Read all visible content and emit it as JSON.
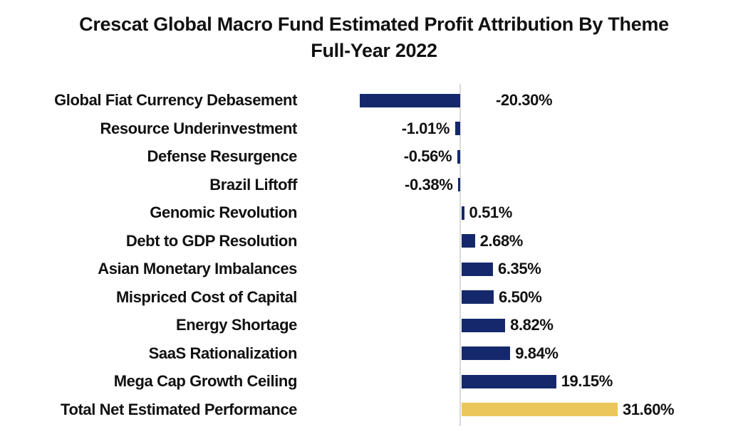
{
  "title": {
    "line1": "Crescat Global Macro Fund Estimated Profit Attribution By Theme",
    "line2": "Full-Year 2022"
  },
  "chart_data": {
    "type": "bar",
    "orientation": "horizontal",
    "title": "Crescat Global Macro Fund Estimated Profit Attribution By Theme Full-Year 2022",
    "xlabel": "",
    "ylabel": "",
    "xlim": [
      -25,
      35
    ],
    "grid": false,
    "legend": "none",
    "zero_axis_line_color": "#d9d9d9",
    "categories": [
      "Global Fiat Currency Debasement",
      "Resource Underinvestment",
      "Defense Resurgence",
      "Brazil Liftoff",
      "Genomic Revolution",
      "Debt to GDP Resolution",
      "Asian Monetary Imbalances",
      "Mispriced Cost of Capital",
      "Energy Shortage",
      "SaaS Rationalization",
      "Mega Cap Growth Ceiling",
      "Total Net Estimated Performance"
    ],
    "values": [
      -20.3,
      -1.01,
      -0.56,
      -0.38,
      0.51,
      2.68,
      6.35,
      6.5,
      8.82,
      9.84,
      19.15,
      31.6
    ],
    "value_labels": [
      "-20.30%",
      "-1.01%",
      "-0.56%",
      "-0.38%",
      "0.51%",
      "2.68%",
      "6.35%",
      "6.50%",
      "8.82%",
      "9.84%",
      "19.15%",
      "31.60%"
    ],
    "bar_colors": [
      "#15286c",
      "#15286c",
      "#15286c",
      "#15286c",
      "#15286c",
      "#15286c",
      "#15286c",
      "#15286c",
      "#15286c",
      "#15286c",
      "#15286c",
      "#ebc65a"
    ],
    "theme_bar_color": "#15286c",
    "total_bar_color": "#ebc65a",
    "label_text_color": "#111111"
  }
}
